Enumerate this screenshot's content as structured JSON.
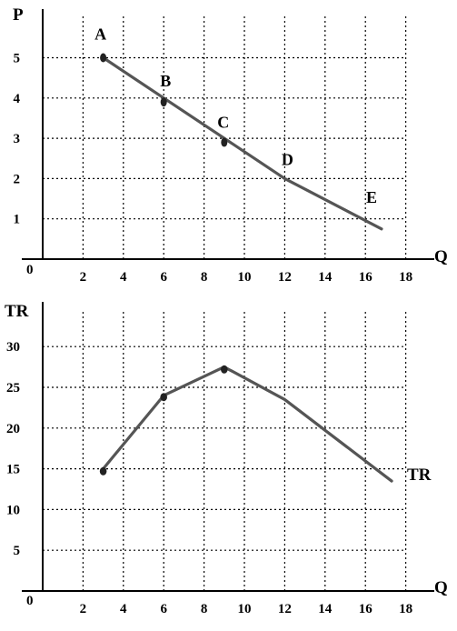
{
  "chart_data": [
    {
      "type": "line",
      "ylabel": "P",
      "xlabel": "Q",
      "origin_label": "0",
      "xlim": [
        0,
        18
      ],
      "ylim": [
        0,
        5
      ],
      "x_ticks": [
        "2",
        "4",
        "6",
        "8",
        "10",
        "12",
        "14",
        "16",
        "18"
      ],
      "y_ticks": [
        "1",
        "2",
        "3",
        "4",
        "5"
      ],
      "grid": true,
      "grid_style": "dotted",
      "line": {
        "x": [
          3,
          6,
          9,
          12,
          16.8
        ],
        "y": [
          5,
          4,
          3,
          2,
          0.75
        ]
      },
      "points": [
        {
          "label": "A",
          "x": 3,
          "y": 5
        },
        {
          "label": "B",
          "x": 6,
          "y": 3.9
        },
        {
          "label": "C",
          "x": 9,
          "y": 2.9
        },
        {
          "label": "D",
          "x": 12,
          "y": 2
        },
        {
          "label": "E",
          "x": 16.8,
          "y": 0.75
        }
      ],
      "color": "#555555"
    },
    {
      "type": "line",
      "ylabel": "TR",
      "xlabel": "Q",
      "origin_label": "0",
      "xlim": [
        0,
        18
      ],
      "ylim": [
        0,
        30
      ],
      "x_ticks": [
        "2",
        "4",
        "6",
        "8",
        "10",
        "12",
        "14",
        "16",
        "18"
      ],
      "y_ticks": [
        "5",
        "10",
        "15",
        "20",
        "25",
        "30"
      ],
      "grid": true,
      "grid_style": "dotted",
      "series_label": "TR",
      "line": {
        "x": [
          3,
          6,
          9,
          12,
          17.3
        ],
        "y": [
          15,
          24,
          27.5,
          23.5,
          13.5
        ]
      },
      "markers": [
        {
          "x": 3,
          "y": 14.7
        },
        {
          "x": 6,
          "y": 23.8
        },
        {
          "x": 9,
          "y": 27.2
        }
      ],
      "color": "#555555"
    }
  ]
}
